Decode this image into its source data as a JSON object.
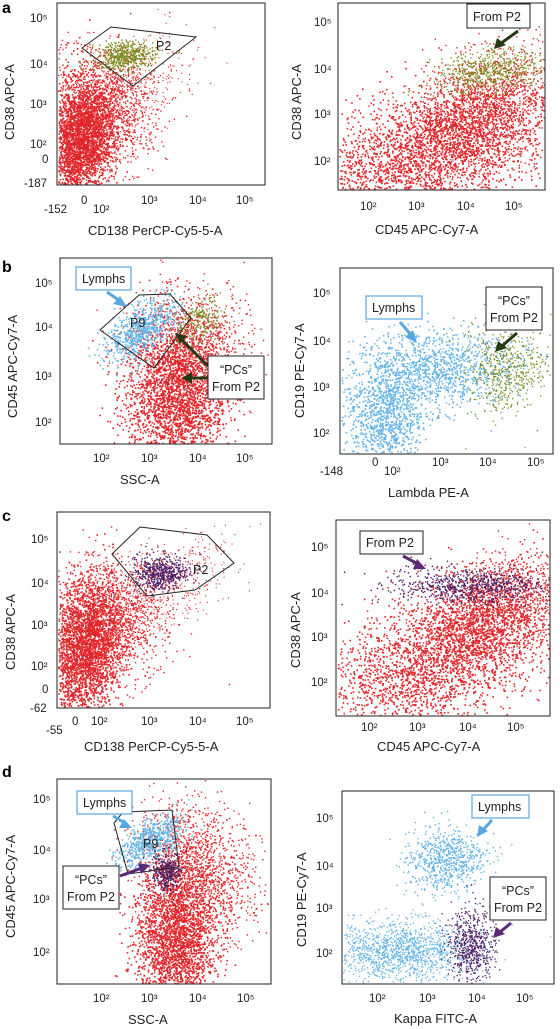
{
  "colors": {
    "bulk": "#e0262a",
    "p2_green": "#7a8a1c",
    "p2_purple": "#4b1e66",
    "lymph": "#63b4e6",
    "callout_arrow_dark": "#253a14",
    "callout_arrow_purple": "#5a2a78",
    "callout_arrow_blue": "#5aa7df",
    "lymph_box_border": "#5aa7df"
  },
  "panels": [
    {
      "id": "a",
      "letter": "a"
    },
    {
      "id": "b",
      "letter": "b"
    },
    {
      "id": "c",
      "letter": "c"
    },
    {
      "id": "d",
      "letter": "d"
    }
  ],
  "plots": [
    {
      "id": "a-left",
      "xlabel": "CD138 PerCP-Cy5-5-A",
      "ylabel": "CD38 APC-A",
      "xticks": [
        "-152",
        "0",
        "10²",
        "10³",
        "10⁴",
        "10⁵"
      ],
      "yticks": [
        "10⁵",
        "10⁴",
        "10³",
        "10²",
        "0",
        "-187"
      ],
      "gate_label": "P2"
    },
    {
      "id": "a-right",
      "xlabel": "CD45 APC-Cy7-A",
      "ylabel": "CD38 APC-A",
      "xticks": [
        "10²",
        "10³",
        "10⁴",
        "10⁵"
      ],
      "yticks": [
        "10⁵",
        "10⁴",
        "10³",
        "10²"
      ],
      "callout": "From P2"
    },
    {
      "id": "b-left",
      "xlabel": "SSC-A",
      "ylabel": "CD45 APC-Cy7-A",
      "xticks": [
        "10²",
        "10³",
        "10⁴",
        "10⁵"
      ],
      "yticks": [
        "10⁵",
        "10⁴",
        "10³",
        "10²"
      ],
      "gate_label": "P9",
      "callout_lymphs": "Lymphs",
      "callout_pcs_1": "“PCs”",
      "callout_pcs_2": "From P2"
    },
    {
      "id": "b-right",
      "xlabel": "Lambda PE-A",
      "ylabel": "CD19 PE-Cy7-A",
      "xticks": [
        "-148",
        "0",
        "10²",
        "10³",
        "10⁴",
        "10⁵"
      ],
      "yticks": [
        "10⁵",
        "10⁴",
        "10³",
        "10²"
      ],
      "callout_lymphs": "Lymphs",
      "callout_pcs_1": "“PCs”",
      "callout_pcs_2": "From P2"
    },
    {
      "id": "c-left",
      "xlabel": "CD138 PerCP-Cy5-5-A",
      "ylabel": "CD38 APC-A",
      "xticks": [
        "-55",
        "0",
        "10²",
        "10³",
        "10⁴",
        "10⁵"
      ],
      "yticks": [
        "10⁵",
        "10⁴",
        "10³",
        "10²",
        "0",
        "-62"
      ],
      "gate_label": "P2"
    },
    {
      "id": "c-right",
      "xlabel": "CD45 APC-Cy7-A",
      "ylabel": "CD38 APC-A",
      "xticks": [
        "10²",
        "10³",
        "10⁴",
        "10⁵"
      ],
      "yticks": [
        "10⁵",
        "10⁴",
        "10³",
        "10²"
      ],
      "callout": "From P2"
    },
    {
      "id": "d-left",
      "xlabel": "SSC-A",
      "ylabel": "CD45 APC-Cy7-A",
      "xticks": [
        "10²",
        "10³",
        "10⁴",
        "10⁵"
      ],
      "yticks": [
        "10⁵",
        "10⁴",
        "10³",
        "10²"
      ],
      "gate_label": "P9",
      "callout_lymphs": "Lymphs",
      "callout_pcs_1": "“PCs”",
      "callout_pcs_2": "From P2"
    },
    {
      "id": "d-right",
      "xlabel": "Kappa FITC-A",
      "ylabel": "CD19 PE-Cy7-A",
      "xticks": [
        "10²",
        "10³",
        "10⁴",
        "10⁵"
      ],
      "yticks": [
        "10⁵",
        "10⁴",
        "10³",
        "10²"
      ],
      "callout_lymphs": "Lymphs",
      "callout_pcs_1": "“PCs”",
      "callout_pcs_2": "From P2"
    }
  ]
}
